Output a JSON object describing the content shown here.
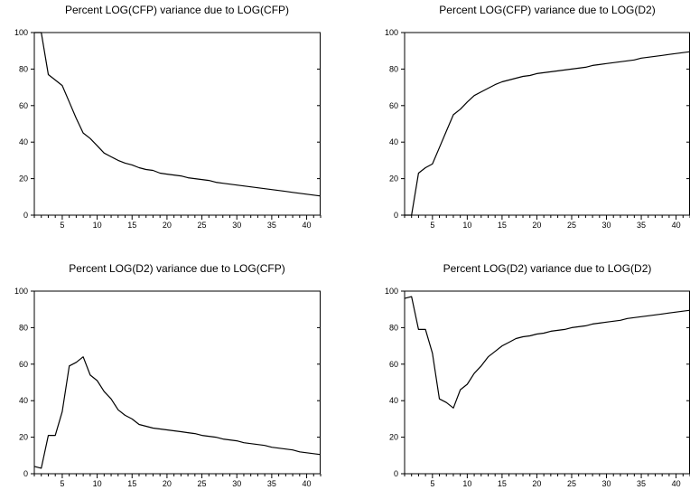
{
  "chart_data": [
    {
      "type": "line",
      "title": "Percent LOG(CFP) variance due to LOG(CFP)",
      "xlim": [
        1,
        42
      ],
      "ylim": [
        0,
        100
      ],
      "xticks": [
        5,
        10,
        15,
        20,
        25,
        30,
        35,
        40
      ],
      "yticks": [
        0,
        20,
        40,
        60,
        80,
        100
      ],
      "grid": false,
      "x": [
        1,
        2,
        3,
        4,
        5,
        6,
        7,
        8,
        9,
        10,
        11,
        12,
        13,
        14,
        15,
        16,
        17,
        18,
        19,
        20,
        21,
        22,
        23,
        24,
        25,
        26,
        27,
        28,
        29,
        30,
        31,
        32,
        33,
        34,
        35,
        36,
        37,
        38,
        39,
        40,
        41,
        42
      ],
      "values": [
        100,
        100,
        77,
        74,
        71,
        62,
        53,
        45,
        42,
        38,
        34,
        32,
        30,
        28.5,
        27.5,
        26,
        25,
        24.5,
        23,
        22.5,
        22,
        21.5,
        20.5,
        20,
        19.5,
        19,
        18,
        17.5,
        17,
        16.5,
        16,
        15.5,
        15,
        14.5,
        14,
        13.5,
        13,
        12.5,
        12,
        11.5,
        11,
        10.5
      ]
    },
    {
      "type": "line",
      "title": "Percent LOG(CFP) variance due to LOG(D2)",
      "xlim": [
        1,
        42
      ],
      "ylim": [
        0,
        100
      ],
      "xticks": [
        5,
        10,
        15,
        20,
        25,
        30,
        35,
        40
      ],
      "yticks": [
        0,
        20,
        40,
        60,
        80,
        100
      ],
      "grid": false,
      "x": [
        1,
        2,
        3,
        4,
        5,
        6,
        7,
        8,
        9,
        10,
        11,
        12,
        13,
        14,
        15,
        16,
        17,
        18,
        19,
        20,
        21,
        22,
        23,
        24,
        25,
        26,
        27,
        28,
        29,
        30,
        31,
        32,
        33,
        34,
        35,
        36,
        37,
        38,
        39,
        40,
        41,
        42
      ],
      "values": [
        0,
        0,
        23,
        26,
        28,
        37,
        46,
        55,
        58,
        62,
        65.5,
        67.5,
        69.5,
        71.5,
        73,
        74,
        75,
        76,
        76.5,
        77.5,
        78,
        78.5,
        79,
        79.5,
        80,
        80.5,
        81,
        82,
        82.5,
        83,
        83.5,
        84,
        84.5,
        85,
        86,
        86.5,
        87,
        87.5,
        88,
        88.5,
        89,
        89.5
      ]
    },
    {
      "type": "line",
      "title": "Percent LOG(D2) variance due to LOG(CFP)",
      "xlim": [
        1,
        42
      ],
      "ylim": [
        0,
        100
      ],
      "xticks": [
        5,
        10,
        15,
        20,
        25,
        30,
        35,
        40
      ],
      "yticks": [
        0,
        20,
        40,
        60,
        80,
        100
      ],
      "grid": false,
      "x": [
        1,
        2,
        3,
        4,
        5,
        6,
        7,
        8,
        9,
        10,
        11,
        12,
        13,
        14,
        15,
        16,
        17,
        18,
        19,
        20,
        21,
        22,
        23,
        24,
        25,
        26,
        27,
        28,
        29,
        30,
        31,
        32,
        33,
        34,
        35,
        36,
        37,
        38,
        39,
        40,
        41,
        42
      ],
      "values": [
        4,
        3,
        21,
        21,
        34,
        59,
        61,
        64,
        54,
        51,
        45,
        41,
        35,
        32,
        30,
        27,
        26,
        25,
        24.5,
        24,
        23.5,
        23,
        22.5,
        22,
        21,
        20.5,
        20,
        19,
        18.5,
        18,
        17,
        16.5,
        16,
        15.5,
        14.5,
        14,
        13.5,
        13,
        12,
        11.5,
        11,
        10.5
      ]
    },
    {
      "type": "line",
      "title": "Percent LOG(D2) variance due to LOG(D2)",
      "xlim": [
        1,
        42
      ],
      "ylim": [
        0,
        100
      ],
      "xticks": [
        5,
        10,
        15,
        20,
        25,
        30,
        35,
        40
      ],
      "yticks": [
        0,
        20,
        40,
        60,
        80,
        100
      ],
      "grid": false,
      "x": [
        1,
        2,
        3,
        4,
        5,
        6,
        7,
        8,
        9,
        10,
        11,
        12,
        13,
        14,
        15,
        16,
        17,
        18,
        19,
        20,
        21,
        22,
        23,
        24,
        25,
        26,
        27,
        28,
        29,
        30,
        31,
        32,
        33,
        34,
        35,
        36,
        37,
        38,
        39,
        40,
        41,
        42
      ],
      "values": [
        96,
        97,
        79,
        79,
        66,
        41,
        39,
        36,
        46,
        49,
        55,
        59,
        64,
        67,
        70,
        72,
        74,
        75,
        75.5,
        76.5,
        77,
        78,
        78.5,
        79,
        80,
        80.5,
        81,
        82,
        82.5,
        83,
        83.5,
        84,
        85,
        85.5,
        86,
        86.5,
        87,
        87.5,
        88,
        88.5,
        89,
        89.5
      ]
    }
  ]
}
